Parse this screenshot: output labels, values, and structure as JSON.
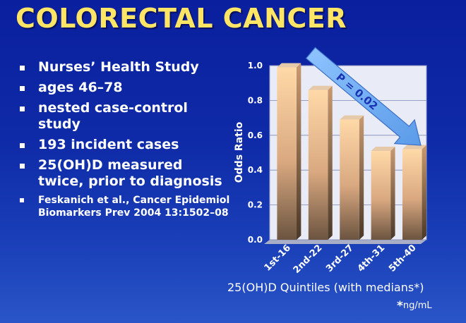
{
  "slide": {
    "title": "COLORECTAL CANCER",
    "bullets": [
      "Nurses’ Health Study",
      "ages 46–78",
      "nested case-control study",
      "193 incident cases",
      "25(OH)D measured twice, prior to diagnosis"
    ],
    "reference": "Feskanich et al., Cancer Epidemiol Biomarkers Prev 2004 13:1502–08",
    "x_axis_label": "25(OH)D Quintiles (with medians*)",
    "footnote_star": "*",
    "footnote_text": "ng/mL",
    "trend_label": "P = 0.02"
  },
  "colors": {
    "background_top": "#0a1f9e",
    "title": "#ffe566",
    "bar_light": "#ffd3a0",
    "bar_dark": "#6b5440",
    "arrow": "#7ab6ff"
  },
  "chart_data": {
    "type": "bar",
    "categories": [
      "1st-16",
      "2nd-22",
      "3rd-27",
      "4th-31",
      "5th-40"
    ],
    "values": [
      0.99,
      0.86,
      0.69,
      0.51,
      0.52
    ],
    "ylabel": "Odds Ratio",
    "xlabel": "25(OH)D Quintiles (with medians*)",
    "ylim": [
      0,
      1.0
    ],
    "yticks": [
      "0.0",
      "0.2",
      "0.4",
      "0.6",
      "0.8",
      "1.0"
    ],
    "grid": true,
    "annotation": "P = 0.02"
  }
}
